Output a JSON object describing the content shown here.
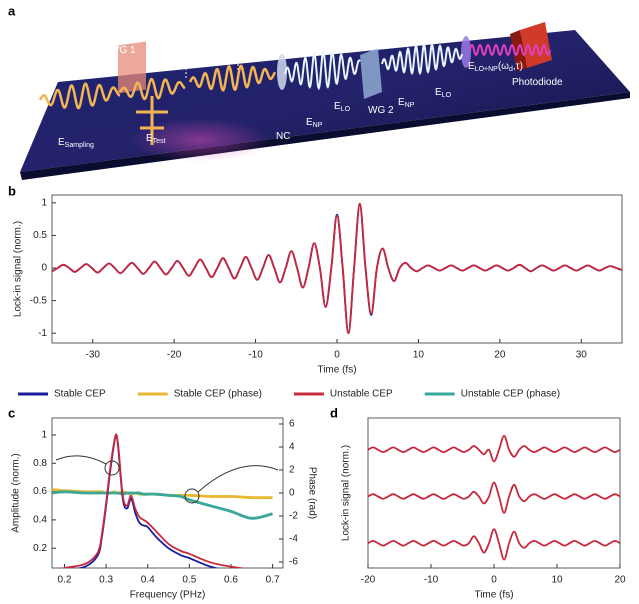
{
  "panel_labels": [
    "a",
    "b",
    "c",
    "d"
  ],
  "diagram": {
    "labels": [
      {
        "segments": [
          {
            "t": "WG 1"
          }
        ]
      },
      {
        "segments": [
          {
            "t": "τ"
          }
        ]
      },
      {
        "segments": [
          {
            "t": "NC"
          }
        ]
      },
      {
        "segments": [
          {
            "t": "E"
          },
          {
            "t": "NP",
            "sub": true
          }
        ]
      },
      {
        "segments": [
          {
            "t": "E"
          },
          {
            "t": "LO",
            "sub": true
          }
        ]
      },
      {
        "segments": [
          {
            "t": "WG 2"
          }
        ]
      },
      {
        "segments": [
          {
            "t": "E"
          },
          {
            "t": "NP",
            "sub": true
          }
        ]
      },
      {
        "segments": [
          {
            "t": "E"
          },
          {
            "t": "LO",
            "sub": true
          }
        ]
      },
      {
        "segments": [
          {
            "t": "BP"
          }
        ]
      },
      {
        "segments": [
          {
            "t": "E"
          },
          {
            "t": "LO+NP",
            "sub": true
          },
          {
            "t": "(ω"
          },
          {
            "t": "d",
            "sub": true
          },
          {
            "t": ",τ)"
          }
        ]
      },
      {
        "segments": [
          {
            "t": "Photodiode"
          }
        ]
      },
      {
        "segments": [
          {
            "t": "E"
          },
          {
            "t": "Sampling",
            "sub": true
          }
        ]
      },
      {
        "segments": [
          {
            "t": "E"
          },
          {
            "t": "Test",
            "sub": true
          }
        ]
      }
    ]
  },
  "chart_data": [
    {
      "type": "line",
      "xlabel": "Time (fs)",
      "ylabel": "Lock-in signal (norm.)",
      "x": [
        -35,
        -34.3,
        -33.6,
        -32.9,
        -32.2,
        -31.5,
        -30.8,
        -30.1,
        -29.4,
        -28.7,
        -28,
        -27.3,
        -26.6,
        -25.9,
        -25.2,
        -24.5,
        -23.8,
        -23.1,
        -22.4,
        -21.7,
        -21,
        -20.3,
        -19.6,
        -18.9,
        -18.2,
        -17.5,
        -16.8,
        -16.1,
        -15.4,
        -14.7,
        -14,
        -13.3,
        -12.6,
        -11.9,
        -11.2,
        -10.5,
        -9.8,
        -9.1,
        -8.4,
        -7.7,
        -7,
        -6.3,
        -5.6,
        -4.9,
        -4.2,
        -3.5,
        -2.8,
        -2.1,
        -1.4,
        -0.7,
        0,
        0.7,
        1.4,
        2.1,
        2.8,
        3.5,
        4.2,
        4.9,
        5.6,
        6.3,
        7,
        7.7,
        8.4,
        9.1,
        9.8,
        10.5,
        11.2,
        11.9,
        12.6,
        13.3,
        14,
        14.7,
        15.4,
        16.1,
        16.8,
        17.5,
        18.2,
        18.9,
        19.6,
        20.3,
        21,
        21.7,
        22.4,
        23.1,
        23.8,
        24.5,
        25.2,
        25.9,
        26.6,
        27.3,
        28,
        28.7,
        29.4,
        30.1,
        30.8,
        31.5,
        32.2,
        32.9,
        33.6,
        34.3,
        35
      ],
      "xlim": [
        -35,
        35
      ],
      "xticks": [
        -30,
        -20,
        -10,
        0,
        10,
        20,
        30
      ],
      "ylim": [
        -1.15,
        1.12
      ],
      "yticks": [
        -1,
        -0.5,
        0,
        0.5,
        1
      ],
      "series": [
        {
          "color": "#1b1b9e",
          "values": [
            -0.05,
            0,
            0.05,
            0,
            -0.06,
            0,
            0.06,
            0,
            -0.07,
            0,
            0.07,
            0,
            -0.08,
            0,
            0.08,
            0,
            -0.09,
            0,
            0.1,
            0,
            -0.1,
            0,
            0.11,
            0,
            -0.12,
            0,
            0.13,
            0,
            -0.14,
            0,
            0.15,
            0,
            -0.16,
            0,
            0.17,
            0,
            -0.18,
            0,
            0.2,
            0,
            -0.22,
            0,
            0.26,
            0,
            -0.3,
            0,
            0.38,
            0,
            -0.6,
            0,
            0.82,
            0,
            -1.0,
            0,
            0.97,
            0,
            -0.72,
            0,
            0.3,
            0,
            -0.2,
            0,
            0.08,
            0,
            -0.05,
            0,
            0.04,
            0,
            -0.04,
            0,
            0.04,
            0,
            -0.04,
            0,
            0.04,
            0,
            -0.04,
            0,
            0.04,
            0,
            -0.04,
            0,
            0.05,
            0,
            -0.05,
            0,
            0.04,
            0,
            -0.04,
            0,
            0.04,
            0,
            -0.04,
            0,
            0.04,
            0,
            -0.04,
            0,
            0.03,
            0,
            -0.03
          ]
        },
        {
          "color": "#c8283c",
          "values": [
            -0.05,
            0,
            0.05,
            0,
            -0.06,
            0,
            0.06,
            0,
            -0.07,
            0,
            0.07,
            0,
            -0.08,
            0,
            0.08,
            0,
            -0.09,
            0,
            0.1,
            0,
            -0.1,
            0,
            0.11,
            0,
            -0.12,
            0,
            0.13,
            0,
            -0.14,
            0,
            0.15,
            0,
            -0.16,
            0,
            0.17,
            0,
            -0.18,
            0,
            0.2,
            0,
            -0.22,
            0,
            0.26,
            0,
            -0.3,
            0,
            0.38,
            0,
            -0.6,
            0,
            0.8,
            0,
            -1.0,
            0,
            0.99,
            0,
            -0.7,
            0,
            0.3,
            0,
            -0.2,
            0,
            0.08,
            0,
            -0.05,
            0,
            0.04,
            0,
            -0.04,
            0,
            0.04,
            0,
            -0.04,
            0,
            0.04,
            0,
            -0.04,
            0,
            0.04,
            0,
            -0.04,
            0,
            0.05,
            0,
            -0.05,
            0,
            0.04,
            0,
            -0.04,
            0,
            0.04,
            0,
            -0.04,
            0,
            0.04,
            0,
            -0.04,
            0,
            0.03,
            0,
            -0.03
          ]
        }
      ]
    },
    {
      "type": "line",
      "xlabel": "Frequency (PHz)",
      "ylabel": "Amplitude (norm.)",
      "y2label": "Phase (rad)",
      "x": [
        0.17,
        0.2,
        0.25,
        0.28,
        0.29,
        0.3,
        0.31,
        0.32,
        0.325,
        0.33,
        0.34,
        0.35,
        0.36,
        0.37,
        0.38,
        0.39,
        0.4,
        0.42,
        0.45,
        0.48,
        0.5,
        0.55,
        0.6,
        0.65,
        0.7
      ],
      "xlim": [
        0.17,
        0.725
      ],
      "xticks": [
        0.2,
        0.3,
        0.4,
        0.5,
        0.6,
        0.7
      ],
      "ylim": [
        0.06,
        1.12
      ],
      "yticks": [
        0.2,
        0.4,
        0.6,
        0.8,
        1
      ],
      "y2lim": [
        -6.52,
        6.52
      ],
      "y2ticks": [
        -6,
        -4,
        -2,
        0,
        2,
        4,
        6
      ],
      "series": [
        {
          "name": "Stable CEP",
          "color": "#1b1b9e",
          "values": [
            0.02,
            0.04,
            0.07,
            0.15,
            0.28,
            0.5,
            0.75,
            0.95,
            1.0,
            0.88,
            0.55,
            0.48,
            0.55,
            0.45,
            0.38,
            0.36,
            0.35,
            0.28,
            0.2,
            0.15,
            0.13,
            0.07,
            0.04,
            0.02,
            0.01
          ]
        },
        {
          "name": "Stable CEP (phase)",
          "color": "#e8b830",
          "axis": "y2",
          "values": [
            0.3,
            0.2,
            0.1,
            0.1,
            0.1,
            0,
            0,
            0.1,
            0,
            0,
            0.1,
            0,
            -0.1,
            0,
            -0.1,
            -0.1,
            -0.1,
            -0.1,
            -0.2,
            -0.2,
            -0.2,
            -0.3,
            -0.3,
            -0.4,
            -0.4
          ]
        },
        {
          "name": "Unstable CEP",
          "color": "#c8283c",
          "values": [
            0.04,
            0.06,
            0.09,
            0.17,
            0.3,
            0.52,
            0.77,
            0.96,
            1.0,
            0.9,
            0.57,
            0.5,
            0.57,
            0.48,
            0.42,
            0.4,
            0.38,
            0.32,
            0.23,
            0.18,
            0.16,
            0.1,
            0.07,
            0.05,
            0.04
          ]
        },
        {
          "name": "Unstable CEP (phase)",
          "color": "#3aa898",
          "axis": "y2",
          "values": [
            0,
            0.1,
            0,
            0,
            0,
            0,
            0,
            0,
            0,
            0,
            -0.1,
            0,
            0,
            0,
            0,
            -0.1,
            -0.1,
            -0.1,
            -0.2,
            -0.3,
            -0.6,
            -1.1,
            -1.6,
            -2.2,
            -1.8
          ]
        }
      ]
    },
    {
      "type": "line",
      "xlabel": "Time (fs)",
      "ylabel": "Lock-in signal (norm.)",
      "x": [
        -20,
        -19.2,
        -18.4,
        -17.6,
        -16.8,
        -16,
        -15.2,
        -14.4,
        -13.6,
        -12.8,
        -12,
        -11.2,
        -10.4,
        -9.6,
        -8.8,
        -8,
        -7.2,
        -6.4,
        -5.6,
        -4.8,
        -4,
        -3.2,
        -2.4,
        -1.6,
        -0.8,
        0,
        0.8,
        1.6,
        2.4,
        3.2,
        4,
        4.8,
        5.6,
        6.4,
        7.2,
        8,
        8.8,
        9.6,
        10.4,
        11.2,
        12,
        12.8,
        13.6,
        14.4,
        15.2,
        16,
        16.8,
        17.6,
        18.4,
        19.2,
        20
      ],
      "xlim": [
        -20,
        20
      ],
      "xticks": [
        -20,
        -10,
        0,
        10,
        20
      ],
      "ylim": [
        -0.53,
        2.68
      ],
      "series": [
        {
          "color": "#c8283c",
          "values": [
            2,
            2.05,
            2,
            1.95,
            2,
            2.05,
            2,
            1.95,
            2,
            2.05,
            2,
            1.95,
            2,
            2.05,
            2,
            1.95,
            2,
            2.05,
            2,
            1.95,
            2,
            2.08,
            2,
            1.9,
            2,
            1.75,
            2,
            2.3,
            2,
            1.85,
            2,
            2.08,
            2,
            1.95,
            2,
            2.05,
            2,
            1.95,
            2,
            2.05,
            2,
            1.95,
            2,
            2.05,
            2,
            1.95,
            2,
            2.05,
            2,
            1.95,
            2
          ]
        },
        {
          "color": "#c8283c",
          "values": [
            1,
            1.05,
            1,
            0.95,
            1,
            1.05,
            1,
            0.95,
            1,
            1.05,
            1,
            0.95,
            1,
            1.05,
            1,
            0.95,
            1,
            1.05,
            1,
            0.95,
            1,
            1.1,
            1,
            0.85,
            1,
            1.3,
            1,
            0.65,
            1,
            1.25,
            1,
            0.9,
            1,
            1.05,
            1,
            0.95,
            1,
            1.05,
            1,
            0.95,
            1,
            1.05,
            1,
            0.95,
            1,
            1.05,
            1,
            0.95,
            1,
            1.05,
            1
          ]
        },
        {
          "color": "#c8283c",
          "values": [
            0,
            0.05,
            0,
            -0.05,
            0,
            0.05,
            0,
            -0.05,
            0,
            0.05,
            0,
            -0.05,
            0,
            0.05,
            0,
            -0.05,
            0,
            0.05,
            0,
            -0.05,
            0,
            0.15,
            0,
            -0.2,
            0,
            0.3,
            0,
            -0.35,
            0,
            0.25,
            0,
            -0.1,
            0,
            0.05,
            0,
            -0.05,
            0,
            0.05,
            0,
            -0.05,
            0,
            0.05,
            0,
            -0.05,
            0,
            0.05,
            0,
            -0.05,
            0,
            0.05,
            0
          ]
        }
      ]
    }
  ]
}
